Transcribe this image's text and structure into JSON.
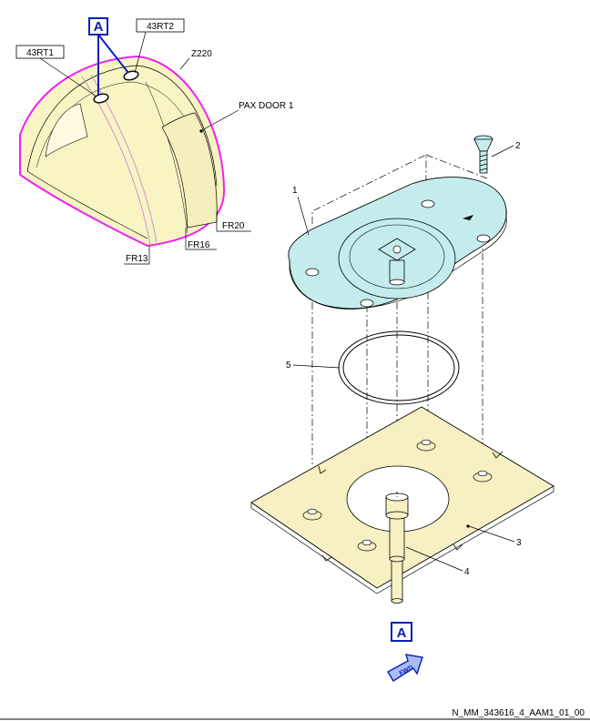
{
  "view_tag": "A",
  "labels": {
    "zone_43rt1": "43RT1",
    "zone_43rt2": "43RT2",
    "zone_z220": "Z220",
    "pax_door": "PAX DOOR 1",
    "frame_20": "FR20",
    "frame_16": "FR16",
    "frame_13": "FR13"
  },
  "item_numbers": {
    "item_1": "1",
    "item_2": "2",
    "item_3": "3",
    "item_4": "4",
    "item_5": "5"
  },
  "fwd_arrow": "FWD",
  "drawing_id": "N_MM_343616_4_AAM1_01_00",
  "colors": {
    "fuselage_fill": "#f8f4c4",
    "fuselage_outline": "#ee22ee",
    "plate_fill": "#f6f0c2",
    "mount_fill": "#c4ecec",
    "tag_blue": "#0a1fb8"
  }
}
